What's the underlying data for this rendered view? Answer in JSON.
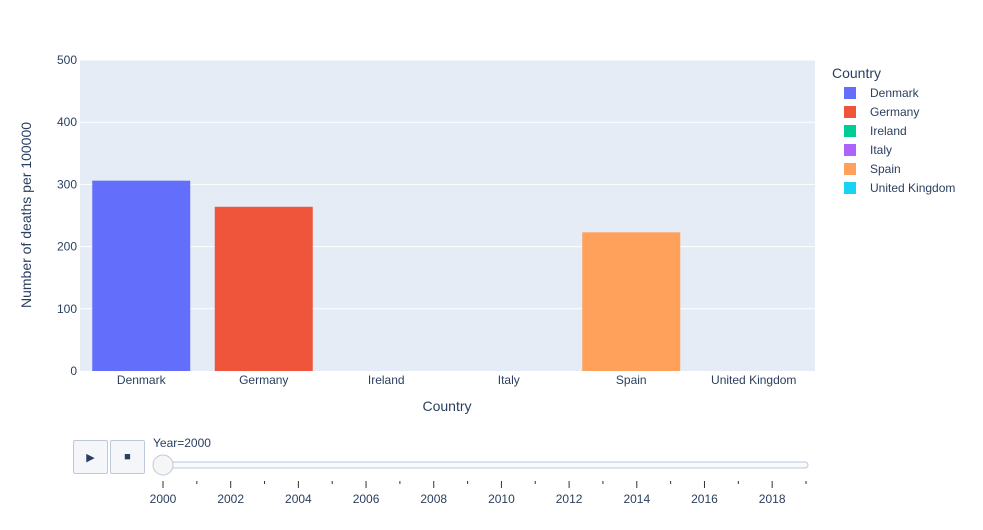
{
  "chart_data": {
    "type": "bar",
    "xlabel": "Country",
    "ylabel": "Number of deaths per 100000",
    "ylim": [
      0,
      500
    ],
    "yticks": [
      "0",
      "100",
      "200",
      "300",
      "400",
      "500"
    ],
    "categories": [
      "Denmark",
      "Germany",
      "Ireland",
      "Italy",
      "Spain",
      "United Kingdom"
    ],
    "values": [
      306,
      264,
      0,
      0,
      223,
      0
    ],
    "grid": true,
    "legend": {
      "title": "Country",
      "placement": "right",
      "entries": [
        "Denmark",
        "Germany",
        "Ireland",
        "Italy",
        "Spain",
        "United Kingdom"
      ]
    },
    "colors": [
      "#636efa",
      "#EF553B",
      "#00cc96",
      "#ab63fa",
      "#FFA15A",
      "#19d3f3"
    ]
  },
  "animation": {
    "current_label": "Year=2000",
    "play_icon": "play-icon",
    "stop_icon": "stop-icon",
    "slider_value": 2000,
    "slider_range": [
      2000,
      2019
    ],
    "slider_tick_labels": [
      "2000",
      "2002",
      "2004",
      "2006",
      "2008",
      "2010",
      "2012",
      "2014",
      "2016",
      "2018"
    ]
  }
}
